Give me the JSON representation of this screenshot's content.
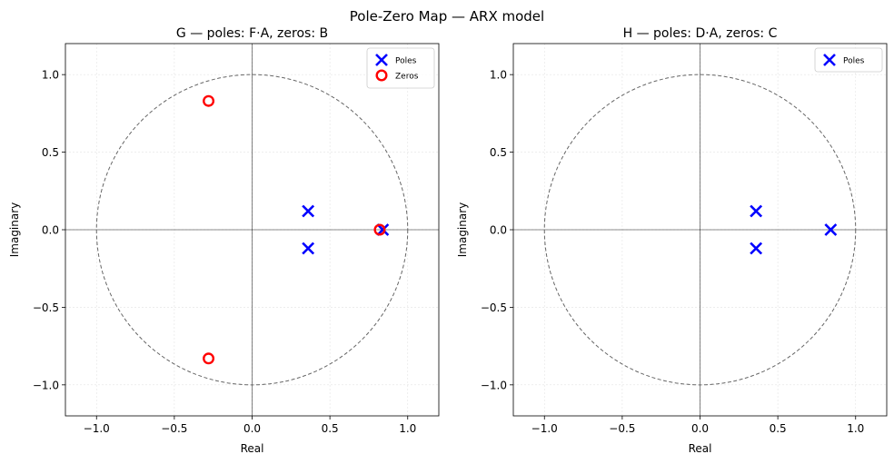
{
  "suptitle": "Pole-Zero Map  —  ARX model",
  "chart_data": [
    {
      "type": "scatter",
      "title": "G  —  poles: F·A,  zeros: B",
      "xlabel": "Real",
      "ylabel": "Imaginary",
      "xlim": [
        -1.2,
        1.2
      ],
      "ylim": [
        -1.2,
        1.2
      ],
      "xticks": [
        -1.0,
        -0.5,
        0.0,
        0.5,
        1.0
      ],
      "yticks": [
        -1.0,
        -0.5,
        0.0,
        0.5,
        1.0
      ],
      "xtick_labels": [
        "−1.0",
        "−0.5",
        "0.0",
        "0.5",
        "1.0"
      ],
      "ytick_labels": [
        "−1.0",
        "−0.5",
        "0.0",
        "0.5",
        "1.0"
      ],
      "grid": true,
      "unit_circle": true,
      "legend_position": "top-right",
      "series": [
        {
          "name": "Poles",
          "marker": "x",
          "color": "#0000ff",
          "points": [
            [
              0.36,
              0.12
            ],
            [
              0.36,
              -0.12
            ],
            [
              0.84,
              0.0
            ]
          ]
        },
        {
          "name": "Zeros",
          "marker": "o",
          "color": "#ff0000",
          "points": [
            [
              -0.28,
              0.83
            ],
            [
              -0.28,
              -0.83
            ],
            [
              0.82,
              0.0
            ]
          ]
        }
      ]
    },
    {
      "type": "scatter",
      "title": "H  —  poles: D·A,  zeros: C",
      "xlabel": "Real",
      "ylabel": "Imaginary",
      "xlim": [
        -1.2,
        1.2
      ],
      "ylim": [
        -1.2,
        1.2
      ],
      "xticks": [
        -1.0,
        -0.5,
        0.0,
        0.5,
        1.0
      ],
      "yticks": [
        -1.0,
        -0.5,
        0.0,
        0.5,
        1.0
      ],
      "xtick_labels": [
        "−1.0",
        "−0.5",
        "0.0",
        "0.5",
        "1.0"
      ],
      "ytick_labels": [
        "−1.0",
        "−0.5",
        "0.0",
        "0.5",
        "1.0"
      ],
      "grid": true,
      "unit_circle": true,
      "legend_position": "top-right",
      "series": [
        {
          "name": "Poles",
          "marker": "x",
          "color": "#0000ff",
          "points": [
            [
              0.36,
              0.12
            ],
            [
              0.36,
              -0.12
            ],
            [
              0.84,
              0.0
            ]
          ]
        }
      ]
    }
  ]
}
